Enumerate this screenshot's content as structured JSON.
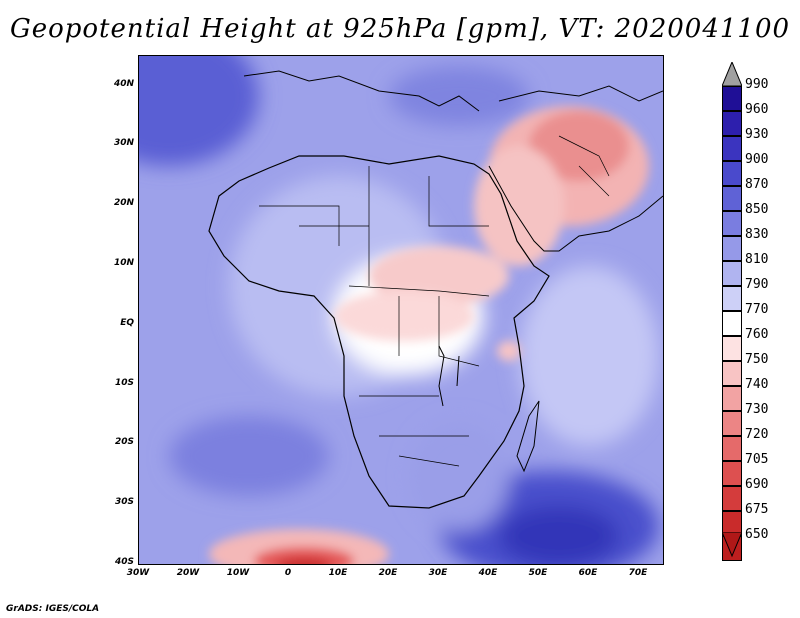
{
  "title": "Geopotential Height at 925hPa [gpm], VT: 2020041100",
  "footer": "GrADS: IGES/COLA",
  "axes": {
    "y_labels": [
      "40N",
      "30N",
      "20N",
      "10N",
      "EQ",
      "10S",
      "20S",
      "30S",
      "40S"
    ],
    "x_labels": [
      "30W",
      "20W",
      "10W",
      "0",
      "10E",
      "20E",
      "30E",
      "40E",
      "50E",
      "60E",
      "70E"
    ]
  },
  "legend": {
    "labels": [
      "990",
      "960",
      "930",
      "900",
      "870",
      "850",
      "830",
      "810",
      "790",
      "770",
      "760",
      "750",
      "740",
      "730",
      "720",
      "705",
      "690",
      "675",
      "650"
    ],
    "colors": [
      "#1f0f96",
      "#2d1fad",
      "#3b34bf",
      "#4a4acc",
      "#5f62d6",
      "#7a7de0",
      "#9599e8",
      "#b0b4f0",
      "#cdd0f7",
      "#ffffff",
      "#fde2e2",
      "#f8c4c4",
      "#f2a3a3",
      "#ec8585",
      "#e56a6a",
      "#dd5050",
      "#d43c3c",
      "#c92b2b",
      "#bd1f1f"
    ]
  }
}
